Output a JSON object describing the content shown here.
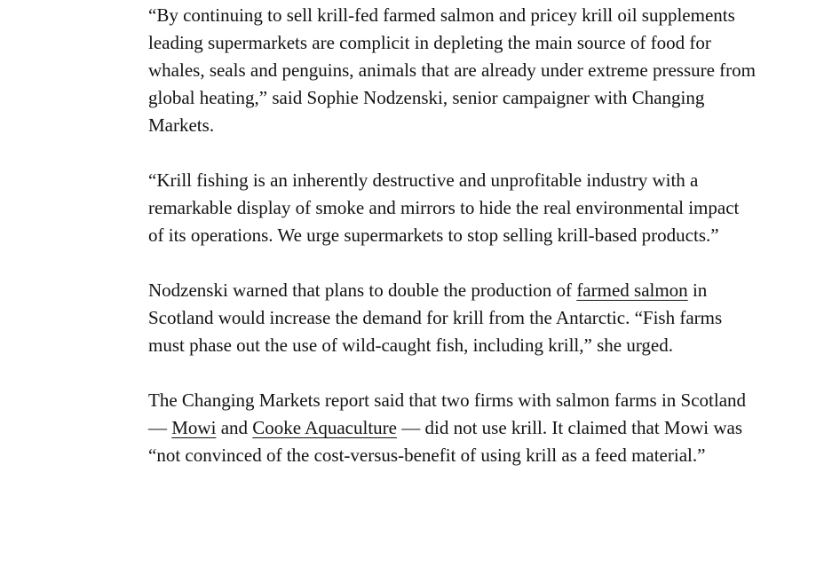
{
  "page": {
    "background_color": "#ffffff",
    "text_color": "#121212",
    "link_color": "#121212"
  },
  "article": {
    "paragraphs": [
      {
        "segments": [
          {
            "type": "text",
            "text": "“By continuing to sell krill-fed farmed salmon and pricey krill oil supplements leading supermarkets are complicit in depleting the main source of food for whales, seals and penguins, animals that are already under extreme pressure from global heating,” said Sophie Nodzenski, senior campaigner with Changing Markets."
          }
        ]
      },
      {
        "segments": [
          {
            "type": "text",
            "text": "“Krill fishing is an inherently destructive and unprofitable industry with a remarkable display of smoke and mirrors to hide the real environmental impact of its operations. We urge supermarkets to stop selling krill-based products.”"
          }
        ]
      },
      {
        "segments": [
          {
            "type": "text",
            "text": "Nodzenski warned that plans to double the production of "
          },
          {
            "type": "link",
            "text": "farmed salmon"
          },
          {
            "type": "text",
            "text": " in Scotland would increase the demand for krill from the Antarctic. “Fish farms must phase out the use of wild-caught fish, including krill,” she urged."
          }
        ]
      },
      {
        "segments": [
          {
            "type": "text",
            "text": "The Changing Markets report said that two firms with salmon farms in Scotland — "
          },
          {
            "type": "link",
            "text": "Mowi"
          },
          {
            "type": "text",
            "text": " and "
          },
          {
            "type": "link",
            "text": "Cooke Aquaculture"
          },
          {
            "type": "text",
            "text": " — did not use krill. It claimed that Mowi was “not convinced of the cost-versus-benefit of using krill as a feed material.”"
          }
        ]
      }
    ]
  }
}
